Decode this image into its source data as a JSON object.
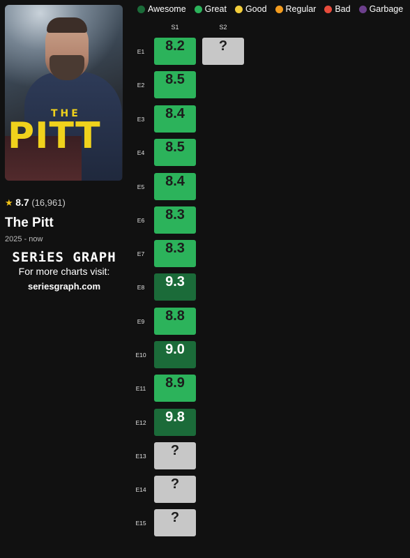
{
  "show": {
    "poster_top_text": "THE",
    "poster_main_text": "PITT",
    "rating": "8.7",
    "votes": "(16,961)",
    "title": "The Pitt",
    "years": "2025 - now",
    "brand": "SERiES GRAPH",
    "promo": "For more charts visit:",
    "site": "seriesgraph.com"
  },
  "legend": [
    {
      "label": "Awesome",
      "color": "#1b6b39"
    },
    {
      "label": "Great",
      "color": "#2cb35b"
    },
    {
      "label": "Good",
      "color": "#f2cd3b"
    },
    {
      "label": "Regular",
      "color": "#f39c1f"
    },
    {
      "label": "Bad",
      "color": "#e74c3c"
    },
    {
      "label": "Garbage",
      "color": "#6c3f8c"
    }
  ],
  "seasons": [
    "S1",
    "S2"
  ],
  "episodes": [
    "E1",
    "E2",
    "E3",
    "E4",
    "E5",
    "E6",
    "E7",
    "E8",
    "E9",
    "E10",
    "E11",
    "E12",
    "E13",
    "E14",
    "E15"
  ],
  "grid": {
    "s1": [
      {
        "value": "8.2",
        "level": "great"
      },
      {
        "value": "8.5",
        "level": "great"
      },
      {
        "value": "8.4",
        "level": "great"
      },
      {
        "value": "8.5",
        "level": "great"
      },
      {
        "value": "8.4",
        "level": "great"
      },
      {
        "value": "8.3",
        "level": "great"
      },
      {
        "value": "8.3",
        "level": "great"
      },
      {
        "value": "9.3",
        "level": "awesome"
      },
      {
        "value": "8.8",
        "level": "great"
      },
      {
        "value": "9.0",
        "level": "awesome"
      },
      {
        "value": "8.9",
        "level": "great"
      },
      {
        "value": "9.8",
        "level": "awesome"
      },
      {
        "value": "?",
        "level": "unknown"
      },
      {
        "value": "?",
        "level": "unknown"
      },
      {
        "value": "?",
        "level": "unknown"
      }
    ],
    "s2": [
      {
        "value": "?",
        "level": "unknown"
      }
    ]
  }
}
